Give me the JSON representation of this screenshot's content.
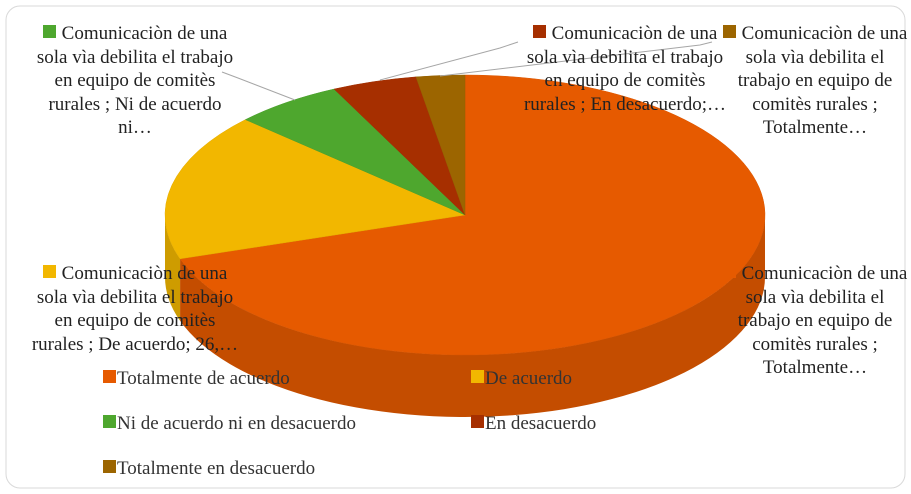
{
  "chart_data": {
    "type": "pie",
    "categories": [
      "Totalmente de acuerdo",
      "De acuerdo",
      "Ni de acuerdo ni en desacuerdo",
      "En desacuerdo",
      "Totalmente en desacuerdo"
    ],
    "values": [
      107,
      26,
      9,
      7,
      4
    ],
    "colors": [
      "#e65a00",
      "#f2b700",
      "#4ea72e",
      "#a62f00",
      "#9c6500"
    ],
    "data_labels": [
      "Comunicaciòn de una sola vìa debilita el trabajo en equipo de comitès rurales ; Totalmente…",
      "Comunicaciòn de una sola vìa debilita el trabajo en equipo de comitès rurales ; De acuerdo; 26,…",
      "Comunicaciòn de una sola vìa debilita el trabajo en equipo de comitès rurales ; Ni de acuerdo ni…",
      "Comunicaciòn de una sola vìa debilita el trabajo en equipo de comitès rurales ; En desacuerdo;…",
      "Comunicaciòn de una sola vìa debilita el trabajo en equipo de comitès rurales ; Totalmente…"
    ],
    "legend": "bottom",
    "three_d": true
  }
}
